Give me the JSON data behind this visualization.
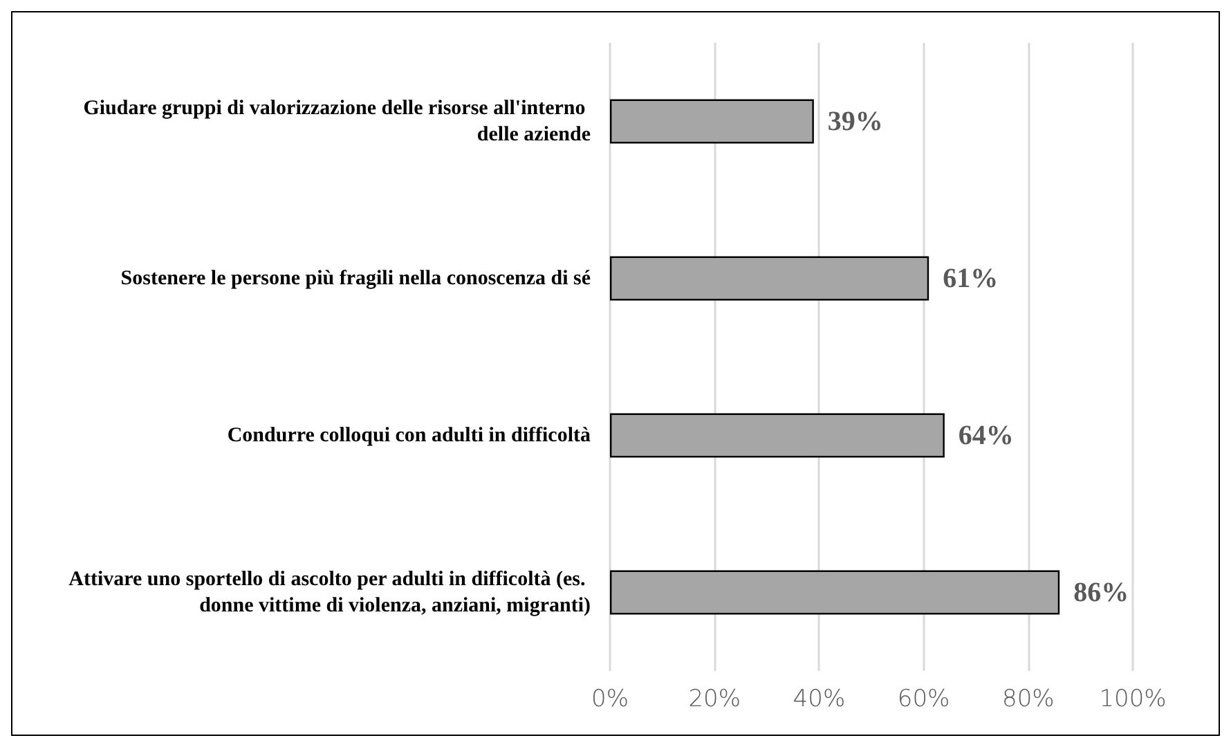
{
  "chart_data": {
    "type": "bar",
    "orientation": "horizontal",
    "categories": [
      "Giudare gruppi di valorizzazione delle risorse all'interno delle aziende",
      "Sostenere le persone più fragili nella conoscenza di sé",
      "Condurre colloqui con adulti in difficoltà",
      "Attivare uno sportello di ascolto per adulti in difficoltà (es. donne vittime di violenza, anziani, migranti)"
    ],
    "values": [
      39,
      61,
      64,
      86
    ],
    "value_labels": [
      "39%",
      "61%",
      "64%",
      "86%"
    ],
    "color": "#a6a6a6",
    "xlim": [
      0,
      100
    ],
    "xticks": [
      {
        "value": 0,
        "label": "0%"
      },
      {
        "value": 20,
        "label": "20%"
      },
      {
        "value": 40,
        "label": "40%"
      },
      {
        "value": 60,
        "label": "60%"
      },
      {
        "value": 80,
        "label": "80%"
      },
      {
        "value": 100,
        "label": "100%"
      }
    ],
    "grid": "x"
  }
}
